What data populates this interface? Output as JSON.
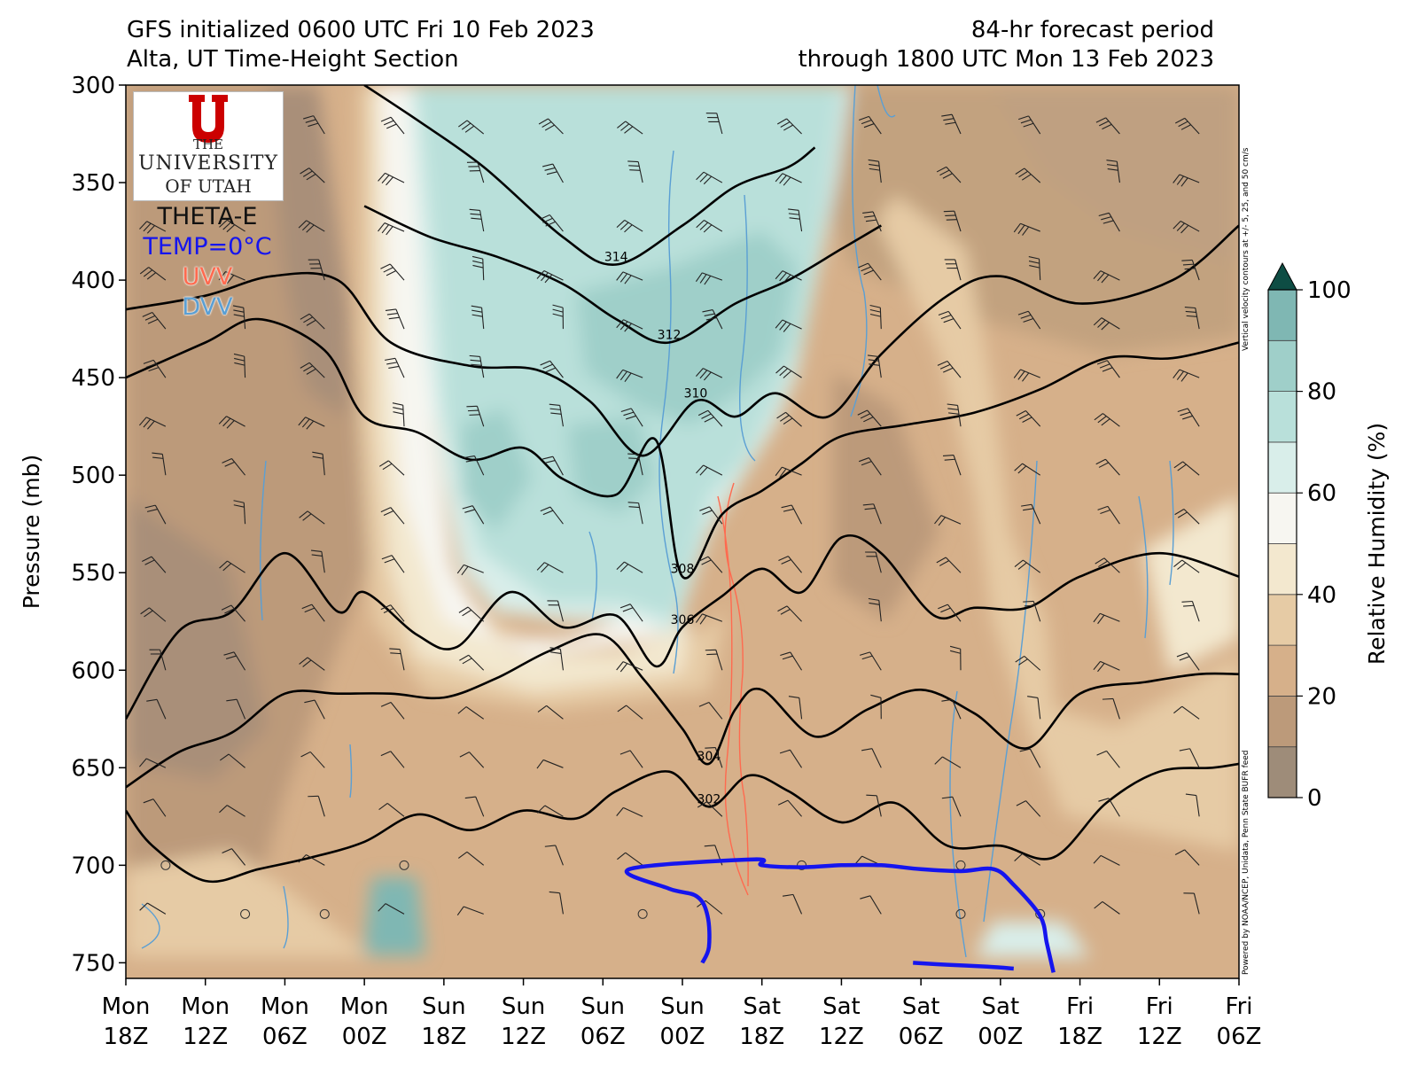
{
  "titles": {
    "left_line1": "GFS initialized 0600 UTC Fri 10 Feb 2023",
    "left_line2": "Alta, UT Time-Height Section",
    "right_line1": "84-hr forecast period",
    "right_line2": "through 1800 UTC Mon 13 Feb 2023"
  },
  "logo": {
    "the": "THE",
    "university": "UNIVERSITY",
    "of_utah": "OF UTAH"
  },
  "legend": {
    "theta_e": "THETA-E",
    "temp0": "TEMP=0°C",
    "uvv": "UVV",
    "dvv": "DVV"
  },
  "notes": {
    "vv_note": "Vertical velocity contours at +/- 5, 25, and 50 cm/s",
    "powered_by": "Powered by NOAA/NCEP, Unidata, Penn State BUFR feed"
  },
  "colors": {
    "rh_fill": [
      "#9e8c79",
      "#bc9a7a",
      "#d6b08a",
      "#e6cba5",
      "#f3e8cf",
      "#f7f6f1",
      "#d9eeea",
      "#b9e0da",
      "#9fcfc9",
      "#7fb7b3"
    ],
    "theta_e": "#000000",
    "temp0": "#1515ee",
    "uvv": "#ff6a4f",
    "dvv": "#5a9fd4"
  },
  "chart_data": {
    "type": "time-height section",
    "ylabel": "Pressure (mb)",
    "y_ticks": [
      300,
      350,
      400,
      450,
      500,
      550,
      600,
      650,
      700,
      750
    ],
    "ylim": [
      758,
      300
    ],
    "x_ticks": [
      [
        "Mon",
        "18Z"
      ],
      [
        "Mon",
        "12Z"
      ],
      [
        "Mon",
        "06Z"
      ],
      [
        "Mon",
        "00Z"
      ],
      [
        "Sun",
        "18Z"
      ],
      [
        "Sun",
        "12Z"
      ],
      [
        "Sun",
        "06Z"
      ],
      [
        "Sun",
        "00Z"
      ],
      [
        "Sat",
        "18Z"
      ],
      [
        "Sat",
        "12Z"
      ],
      [
        "Sat",
        "06Z"
      ],
      [
        "Sat",
        "00Z"
      ],
      [
        "Fri",
        "18Z"
      ],
      [
        "Fri",
        "12Z"
      ],
      [
        "Fri",
        "06Z"
      ]
    ],
    "x_hours": [
      84,
      78,
      72,
      66,
      60,
      54,
      48,
      42,
      36,
      30,
      24,
      18,
      12,
      6,
      0
    ],
    "colorbar": {
      "label": "Relative Humidity (%)",
      "levels": [
        0,
        10,
        20,
        30,
        40,
        50,
        60,
        70,
        80,
        90,
        100
      ],
      "tick_labels": [
        "0",
        "20",
        "40",
        "60",
        "80",
        "100"
      ],
      "extend": "max"
    },
    "theta_e_contours": [
      {
        "label": "314",
        "points": [
          [
            66,
            300
          ],
          [
            62,
            318
          ],
          [
            57,
            342
          ],
          [
            51,
            378
          ],
          [
            47,
            392
          ],
          [
            42,
            372
          ],
          [
            38,
            352
          ],
          [
            34,
            342
          ],
          [
            32,
            332
          ]
        ]
      },
      {
        "label": "312",
        "points": [
          [
            66,
            362
          ],
          [
            61,
            378
          ],
          [
            56,
            388
          ],
          [
            51,
            402
          ],
          [
            47,
            420
          ],
          [
            43,
            432
          ],
          [
            38,
            412
          ],
          [
            34,
            400
          ],
          [
            30,
            384
          ],
          [
            27,
            372
          ]
        ]
      },
      {
        "label": "310",
        "points": [
          [
            84,
            415
          ],
          [
            78,
            408
          ],
          [
            73,
            398
          ],
          [
            68,
            400
          ],
          [
            64,
            432
          ],
          [
            58,
            444
          ],
          [
            53,
            446
          ],
          [
            49,
            462
          ],
          [
            45,
            490
          ],
          [
            41,
            462
          ],
          [
            38,
            470
          ],
          [
            35,
            458
          ],
          [
            31,
            470
          ],
          [
            27,
            438
          ],
          [
            22,
            408
          ],
          [
            18,
            398
          ],
          [
            12,
            412
          ],
          [
            5,
            400
          ],
          [
            0,
            372
          ]
        ]
      },
      {
        "label": "308",
        "points": [
          [
            84,
            450
          ],
          [
            78,
            432
          ],
          [
            74,
            420
          ],
          [
            69,
            436
          ],
          [
            66,
            470
          ],
          [
            62,
            478
          ],
          [
            58,
            492
          ],
          [
            54,
            486
          ],
          [
            51,
            502
          ],
          [
            47,
            510
          ],
          [
            44,
            482
          ],
          [
            42,
            552
          ],
          [
            39,
            520
          ],
          [
            36,
            508
          ],
          [
            33,
            494
          ],
          [
            30,
            480
          ],
          [
            25,
            474
          ],
          [
            20,
            468
          ],
          [
            15,
            456
          ],
          [
            10,
            440
          ],
          [
            5,
            440
          ],
          [
            0,
            432
          ]
        ]
      },
      {
        "label": "306",
        "points": [
          [
            84,
            625
          ],
          [
            80,
            580
          ],
          [
            76,
            570
          ],
          [
            72,
            540
          ],
          [
            68,
            570
          ],
          [
            66,
            560
          ],
          [
            62,
            582
          ],
          [
            59,
            588
          ],
          [
            55,
            560
          ],
          [
            51,
            578
          ],
          [
            47,
            572
          ],
          [
            44,
            598
          ],
          [
            42,
            578
          ],
          [
            39,
            562
          ],
          [
            36,
            548
          ],
          [
            33,
            560
          ],
          [
            30,
            532
          ],
          [
            27,
            540
          ],
          [
            23,
            572
          ],
          [
            20,
            568
          ],
          [
            16,
            568
          ],
          [
            12,
            552
          ],
          [
            6,
            540
          ],
          [
            0,
            552
          ]
        ]
      },
      {
        "label": "304",
        "points": [
          [
            84,
            660
          ],
          [
            80,
            642
          ],
          [
            76,
            632
          ],
          [
            72,
            612
          ],
          [
            68,
            612
          ],
          [
            64,
            612
          ],
          [
            60,
            614
          ],
          [
            56,
            604
          ],
          [
            52,
            590
          ],
          [
            48,
            582
          ],
          [
            45,
            604
          ],
          [
            42,
            630
          ],
          [
            40,
            648
          ],
          [
            38,
            620
          ],
          [
            36,
            610
          ],
          [
            32,
            634
          ],
          [
            28,
            620
          ],
          [
            24,
            610
          ],
          [
            20,
            622
          ],
          [
            16,
            640
          ],
          [
            12,
            612
          ],
          [
            7,
            606
          ],
          [
            3,
            602
          ],
          [
            0,
            602
          ]
        ]
      },
      {
        "label": "302",
        "points": [
          [
            84,
            672
          ],
          [
            82,
            690
          ],
          [
            78,
            708
          ],
          [
            74,
            702
          ],
          [
            70,
            696
          ],
          [
            66,
            688
          ],
          [
            62,
            674
          ],
          [
            58,
            682
          ],
          [
            54,
            672
          ],
          [
            50,
            676
          ],
          [
            47,
            662
          ],
          [
            43,
            652
          ],
          [
            40,
            670
          ],
          [
            37,
            654
          ],
          [
            34,
            662
          ],
          [
            30,
            678
          ],
          [
            26,
            668
          ],
          [
            22,
            690
          ],
          [
            18,
            690
          ],
          [
            14,
            696
          ],
          [
            10,
            668
          ],
          [
            6,
            652
          ],
          [
            2,
            650
          ],
          [
            0,
            648
          ]
        ]
      }
    ],
    "temp0_contour": [
      [
        40.5,
        750
      ],
      [
        40.0,
        742
      ],
      [
        40.1,
        726
      ],
      [
        40.9,
        716
      ],
      [
        43.0,
        712
      ],
      [
        46.0,
        702
      ],
      [
        36.6,
        697
      ],
      [
        36.0,
        700
      ],
      [
        33.0,
        701
      ],
      [
        30.0,
        700
      ],
      [
        27.0,
        700
      ],
      [
        24.0,
        702
      ],
      [
        21.0,
        703
      ],
      [
        18.5,
        702
      ],
      [
        17.0,
        710
      ],
      [
        15.0,
        726
      ],
      [
        14.5,
        740
      ],
      [
        14.0,
        755
      ]
    ],
    "temp0_surface_segment": [
      [
        24.6,
        750
      ],
      [
        22.0,
        751
      ],
      [
        19.0,
        752
      ],
      [
        17.0,
        753
      ]
    ],
    "wind_barbs": "plotted at each 6-hr interval and 25-mb level; calm winds shown as circles"
  }
}
